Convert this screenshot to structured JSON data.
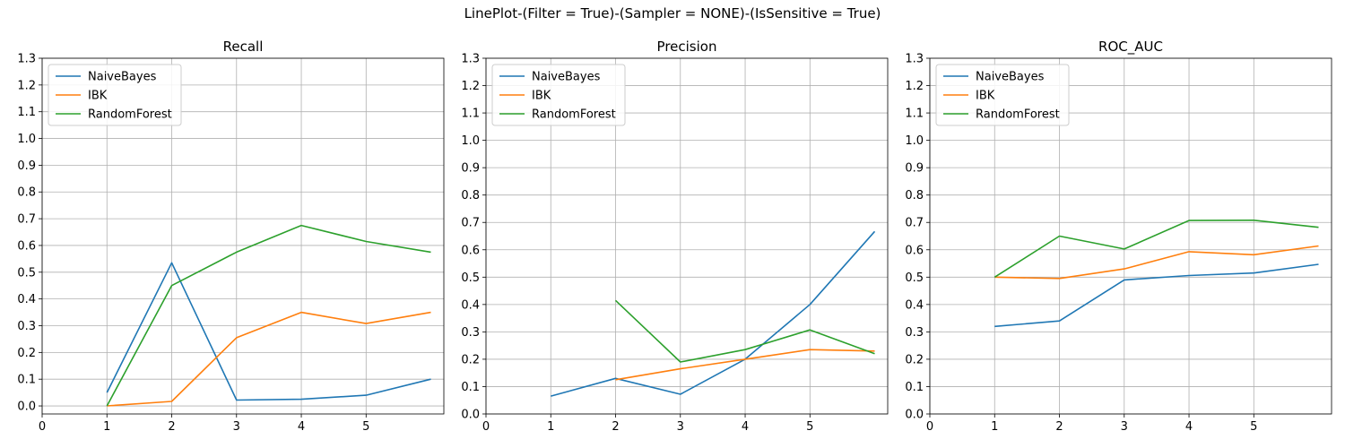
{
  "suptitle": "LinePlot-(Filter = True)-(Sampler = NONE)-(IsSensitive = True)",
  "colors": {
    "NaiveBayes": "#1f77b4",
    "IBK": "#ff7f0e",
    "RandomForest": "#2ca02c",
    "grid": "#b0b0b0"
  },
  "chart_data": [
    {
      "type": "line",
      "title": "Recall",
      "x": [
        1,
        2,
        3,
        4,
        5,
        6
      ],
      "xticks": [
        "0",
        "1",
        "2",
        "3",
        "4",
        "5"
      ],
      "xlim": [
        0,
        6.2
      ],
      "ylim": [
        -0.03,
        1.3
      ],
      "yticks": [
        "0.0",
        "0.1",
        "0.2",
        "0.3",
        "0.4",
        "0.5",
        "0.6",
        "0.7",
        "0.8",
        "0.9",
        "1.0",
        "1.1",
        "1.2",
        "1.3"
      ],
      "grid": true,
      "legend": "top-left",
      "series": [
        {
          "name": "NaiveBayes",
          "values": [
            0.05,
            0.535,
            0.022,
            0.025,
            0.04,
            0.1
          ]
        },
        {
          "name": "IBK",
          "values": [
            0.0,
            0.017,
            0.255,
            0.35,
            0.308,
            0.35
          ]
        },
        {
          "name": "RandomForest",
          "values": [
            0.0,
            0.45,
            0.575,
            0.675,
            0.615,
            0.575
          ]
        }
      ]
    },
    {
      "type": "line",
      "title": "Precision",
      "x": [
        1,
        2,
        3,
        4,
        5,
        6
      ],
      "xticks": [
        "0",
        "1",
        "2",
        "3",
        "4",
        "5"
      ],
      "xlim": [
        0,
        6.2
      ],
      "ylim": [
        0.0,
        1.3
      ],
      "yticks": [
        "0.0",
        "0.1",
        "0.2",
        "0.3",
        "0.4",
        "0.5",
        "0.6",
        "0.7",
        "0.8",
        "0.9",
        "1.0",
        "1.1",
        "1.2",
        "1.3"
      ],
      "grid": true,
      "legend": "top-left",
      "series": [
        {
          "name": "NaiveBayes",
          "values": [
            0.065,
            0.13,
            0.072,
            0.2,
            0.4,
            0.667
          ]
        },
        {
          "name": "IBK",
          "values": [
            null,
            0.125,
            0.165,
            0.2,
            0.235,
            0.23
          ]
        },
        {
          "name": "RandomForest",
          "values": [
            null,
            0.415,
            0.19,
            0.235,
            0.307,
            0.22
          ]
        }
      ]
    },
    {
      "type": "line",
      "title": "ROC_AUC",
      "x": [
        1,
        2,
        3,
        4,
        5,
        6
      ],
      "xticks": [
        "0",
        "1",
        "2",
        "3",
        "4",
        "5"
      ],
      "xlim": [
        0,
        6.2
      ],
      "ylim": [
        0.0,
        1.3
      ],
      "yticks": [
        "0.0",
        "0.1",
        "0.2",
        "0.3",
        "0.4",
        "0.5",
        "0.6",
        "0.7",
        "0.8",
        "0.9",
        "1.0",
        "1.1",
        "1.2",
        "1.3"
      ],
      "grid": true,
      "legend": "top-left",
      "series": [
        {
          "name": "NaiveBayes",
          "values": [
            0.32,
            0.34,
            0.49,
            0.506,
            0.515,
            0.547
          ]
        },
        {
          "name": "IBK",
          "values": [
            0.5,
            0.495,
            0.53,
            0.593,
            0.582,
            0.614
          ]
        },
        {
          "name": "RandomForest",
          "values": [
            0.5,
            0.65,
            0.603,
            0.707,
            0.708,
            0.682
          ]
        }
      ]
    }
  ]
}
